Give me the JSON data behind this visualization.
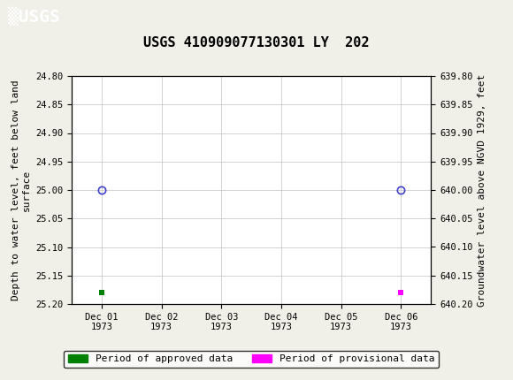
{
  "title": "USGS 410909077130301 LY  202",
  "header_bg_color": "#006644",
  "plot_bg_color": "#ffffff",
  "fig_bg_color": "#f0f0e8",
  "ylabel_left": "Depth to water level, feet below land\nsurface",
  "ylabel_right": "Groundwater level above NGVD 1929, feet",
  "ylim_left": [
    24.8,
    25.2
  ],
  "ylim_right": [
    639.8,
    640.2
  ],
  "yticks_left": [
    24.8,
    24.85,
    24.9,
    24.95,
    25.0,
    25.05,
    25.1,
    25.15,
    25.2
  ],
  "yticks_right": [
    640.2,
    640.15,
    640.1,
    640.05,
    640.0,
    639.95,
    639.9,
    639.85,
    639.8
  ],
  "xtick_labels": [
    "Dec 01\n1973",
    "Dec 02\n1973",
    "Dec 03\n1973",
    "Dec 04\n1973",
    "Dec 05\n1973",
    "Dec 06\n1973"
  ],
  "xtick_positions": [
    0,
    1,
    2,
    3,
    4,
    5
  ],
  "approved_points_x": [
    0
  ],
  "approved_points_y": [
    25.0
  ],
  "approved_bar_x": [
    0
  ],
  "approved_bar_y": [
    25.18
  ],
  "provisional_points_x": [
    5
  ],
  "provisional_points_y": [
    25.0
  ],
  "provisional_bar_x": [
    5
  ],
  "provisional_bar_y": [
    25.18
  ],
  "approved_color": "#008000",
  "provisional_color": "#ff00ff",
  "circle_color": "#4040cc",
  "grid_color": "#c0c0c0",
  "font_family": "monospace",
  "title_fontsize": 11,
  "tick_fontsize": 7.5,
  "label_fontsize": 8,
  "legend_fontsize": 8,
  "legend_label_approved": "Period of approved data",
  "legend_label_provisional": "Period of provisional data"
}
